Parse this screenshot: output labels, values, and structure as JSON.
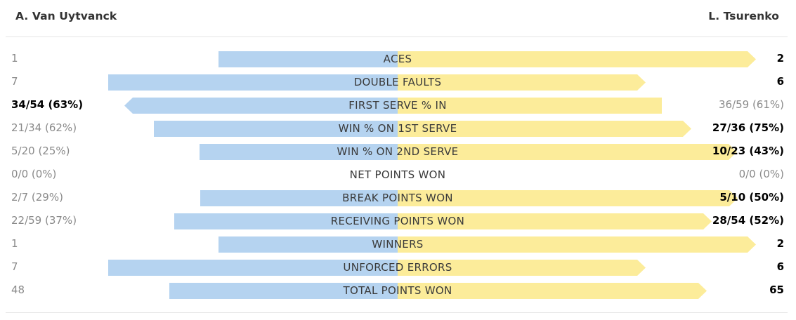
{
  "players": {
    "left": "A. Van Uytvanck",
    "right": "L. Tsurenko"
  },
  "colors": {
    "left_bar": "#b5d3f0",
    "right_bar": "#fcec9a",
    "winner_text": "#000000",
    "loser_text": "#8a8a8a"
  },
  "stats": [
    {
      "label": "ACES",
      "left": "1",
      "right": "2",
      "left_share": 0.333,
      "right_share": 0.667,
      "winner": "right"
    },
    {
      "label": "DOUBLE FAULTS",
      "left": "7",
      "right": "6",
      "left_share": 0.538,
      "right_share": 0.462,
      "winner": "right"
    },
    {
      "label": "FIRST SERVE % IN",
      "left": "34/54 (63%)",
      "right": "36/59 (61%)",
      "left_share": 0.508,
      "right_share": 0.492,
      "winner": "left"
    },
    {
      "label": "WIN % ON 1ST SERVE",
      "left": "21/34 (62%)",
      "right": "27/36 (75%)",
      "left_share": 0.453,
      "right_share": 0.547,
      "winner": "right"
    },
    {
      "label": "WIN % ON 2ND SERVE",
      "left": "5/20 (25%)",
      "right": "10/23 (43%)",
      "left_share": 0.368,
      "right_share": 0.632,
      "winner": "right"
    },
    {
      "label": "NET POINTS WON",
      "left": "0/0 (0%)",
      "right": "0/0 (0%)",
      "left_share": 0,
      "right_share": 0,
      "winner": "none"
    },
    {
      "label": "BREAK POINTS WON",
      "left": "2/7 (29%)",
      "right": "5/10 (50%)",
      "left_share": 0.367,
      "right_share": 0.633,
      "winner": "right"
    },
    {
      "label": "RECEIVING POINTS WON",
      "left": "22/59 (37%)",
      "right": "28/54 (52%)",
      "left_share": 0.416,
      "right_share": 0.584,
      "winner": "right"
    },
    {
      "label": "WINNERS",
      "left": "1",
      "right": "2",
      "left_share": 0.333,
      "right_share": 0.667,
      "winner": "right"
    },
    {
      "label": "UNFORCED ERRORS",
      "left": "7",
      "right": "6",
      "left_share": 0.538,
      "right_share": 0.462,
      "winner": "right"
    },
    {
      "label": "TOTAL POINTS WON",
      "left": "48",
      "right": "65",
      "left_share": 0.425,
      "right_share": 0.575,
      "winner": "right"
    }
  ]
}
